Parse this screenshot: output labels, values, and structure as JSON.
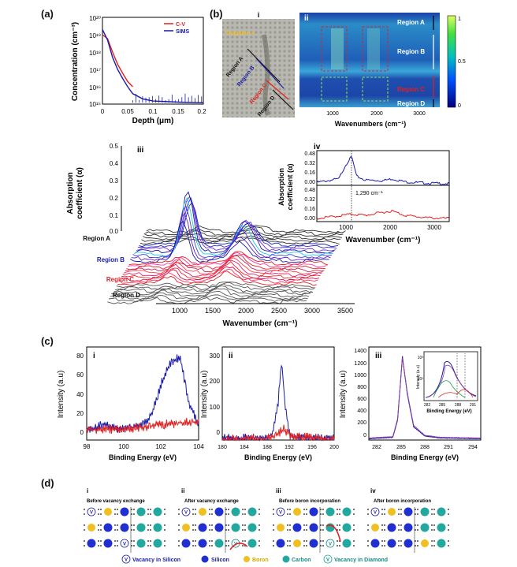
{
  "panel_labels": {
    "a": "(a)",
    "b": "(b)",
    "c": "(c)",
    "d": "(d)"
  },
  "panel_a": {
    "ylabel": "Concentration (cm⁻³)",
    "xlabel": "Depth (μm)",
    "legend": [
      "C-V",
      "SIMS"
    ],
    "ytick_labels": [
      "10²⁰",
      "10¹⁹",
      "10¹⁸",
      "10¹⁷",
      "10¹⁶",
      "10¹⁵"
    ],
    "xtick_labels": [
      "0",
      "0.05",
      "0.1",
      "0.15",
      "0.2"
    ]
  },
  "panel_b": {
    "sub_i": "i",
    "sub_ii": "ii",
    "map_regions": [
      "Region A",
      "Region B",
      "Region C",
      "Region D"
    ],
    "optical_regions": [
      "Region A",
      "Region B",
      "Region C",
      "Region D"
    ],
    "optical_tag": "Tungsten +",
    "xlabel": "Wavenumbers (cm⁻¹)",
    "xtick_labels": [
      "1000",
      "2000",
      "3000"
    ],
    "colorbar_ticks": [
      "1",
      "0.5",
      "0"
    ]
  },
  "panel_iii": {
    "sub": "iii",
    "ylabel_line1": "Absorption",
    "ylabel_line2": "coefficient (α)",
    "ytick_labels": [
      "0.5",
      "0.4",
      "0.3",
      "0.2",
      "0.1",
      "0.0"
    ],
    "xtick_labels": [
      "1000",
      "1500",
      "2000",
      "2500",
      "3000",
      "3500"
    ],
    "xlabel": "Wavenumber (cm⁻¹)",
    "regions": [
      "Region A",
      "Region B",
      "Region C",
      "Region D"
    ]
  },
  "panel_iv": {
    "sub": "iv",
    "ylabel_line1": "Absorption",
    "ylabel_line2": "coefficient (α)",
    "ytick_labels_top": [
      "0.48",
      "0.32",
      "0.16",
      "0.00"
    ],
    "ytick_labels_bottom": [
      "0.48",
      "0.32",
      "0.16",
      "0.00"
    ],
    "xtick_labels": [
      "1000",
      "2000",
      "3000"
    ],
    "annotation": "1,290 cm⁻¹",
    "xlabel": "Wavenumber (cm⁻¹)"
  },
  "panel_c": {
    "ylabel": "Intensity (a.u)",
    "xlabel": "Binding Energy (eV)",
    "plots": [
      {
        "sub": "i",
        "ytick_labels": [
          "80",
          "60",
          "40",
          "20",
          "0"
        ],
        "xtick_labels": [
          "98",
          "100",
          "102",
          "104"
        ]
      },
      {
        "sub": "ii",
        "ytick_labels": [
          "300",
          "200",
          "100",
          "0"
        ],
        "xtick_labels": [
          "180",
          "184",
          "188",
          "192",
          "196",
          "200"
        ]
      },
      {
        "sub": "iii",
        "ytick_labels": [
          "1400",
          "1200",
          "1000",
          "800",
          "600",
          "400",
          "200",
          "0"
        ],
        "xtick_labels": [
          "282",
          "285",
          "288",
          "291",
          "294"
        ]
      }
    ],
    "inset": {
      "ylabel": "Intensity (a.u)",
      "xlabel": "Binding Energy (eV)",
      "ytick_labels": [
        "10³",
        "10²"
      ],
      "xtick_labels": [
        "282",
        "285",
        "288",
        "291"
      ]
    }
  },
  "panel_d": {
    "steps": [
      {
        "num": "i",
        "title": "Before vacancy exchange"
      },
      {
        "num": "ii",
        "title": "After vacancy exchange"
      },
      {
        "num": "iii",
        "title": "Before boron incorporation"
      },
      {
        "num": "iv",
        "title": "After boron incorporation"
      }
    ],
    "legend": [
      "Vacancy in Silicon",
      "Silicon",
      "Boron",
      "Carbon",
      "Vacancy in Diamond"
    ],
    "vacancy_symbol": "V"
  },
  "colors": {
    "red": "#e02020",
    "blue": "#1a1aa8",
    "silicon": "#1f2fd0",
    "boron": "#f0c020",
    "carbon": "#23a8a0"
  },
  "chart_data": [
    {
      "type": "line",
      "title": "",
      "xlabel": "Depth (μm)",
      "ylabel": "Concentration (cm⁻³)",
      "xlim": [
        0,
        0.2
      ],
      "ylim": [
        1000000000000000.0,
        1e+20
      ],
      "yscale": "log",
      "series": [
        {
          "name": "C-V",
          "x": [
            0,
            0.01,
            0.02,
            0.03,
            0.04,
            0.05,
            0.06
          ],
          "values": [
            1e+19,
            6e+18,
            1e+18,
            2e+17,
            6e+16,
            2e+16,
            1e+16
          ]
        },
        {
          "name": "SIMS",
          "x": [
            0,
            0.01,
            0.02,
            0.03,
            0.04,
            0.05,
            0.06,
            0.08,
            0.1,
            0.15,
            0.2
          ],
          "values": [
            2e+19,
            5e+18,
            5e+17,
            1e+17,
            3e+16,
            1e+16,
            4000000000000000.0,
            2000000000000000.0,
            1500000000000000.0,
            1300000000000000.0,
            1200000000000000.0
          ]
        }
      ]
    },
    {
      "type": "line",
      "title": "",
      "xlabel": "Wavenumber (cm⁻¹)",
      "ylabel": "Absorption coefficient (α)",
      "xlim": [
        500,
        3500
      ],
      "ylim": [
        0,
        0.56
      ],
      "series": [
        {
          "name": "Region B",
          "x": [
            500,
            1000,
            1150,
            1290,
            1400,
            1600,
            2000,
            2200,
            2500,
            3000,
            3500
          ],
          "values": [
            0.02,
            0.08,
            0.3,
            0.44,
            0.12,
            0.06,
            0.05,
            0.08,
            0.03,
            0.01,
            0.0
          ]
        },
        {
          "name": "Region C",
          "x": [
            500,
            1000,
            1290,
            1600,
            2000,
            2200,
            2500,
            3000,
            3500
          ],
          "values": [
            0.0,
            0.04,
            0.07,
            0.05,
            0.1,
            0.12,
            0.05,
            0.01,
            0.0
          ]
        }
      ]
    },
    {
      "type": "line",
      "title": "",
      "xlabel": "Binding Energy (eV)",
      "ylabel": "Intensity (a.u)",
      "xlim": [
        98,
        104
      ],
      "ylim": [
        -10,
        80
      ],
      "series": [
        {
          "name": "blue",
          "x": [
            98,
            99,
            100,
            101,
            101.5,
            102,
            102.5,
            103,
            103.5,
            104
          ],
          "values": [
            0,
            5,
            0,
            5,
            15,
            45,
            65,
            70,
            25,
            5
          ]
        },
        {
          "name": "red",
          "x": [
            98,
            100,
            102,
            104
          ],
          "values": [
            0,
            0,
            5,
            8
          ]
        }
      ]
    },
    {
      "type": "line",
      "title": "",
      "xlabel": "Binding Energy (eV)",
      "ylabel": "Intensity (a.u)",
      "xlim": [
        180,
        200
      ],
      "ylim": [
        0,
        300
      ],
      "series": [
        {
          "name": "blue",
          "x": [
            180,
            188,
            189,
            190,
            190.6,
            191.2,
            192,
            193,
            200
          ],
          "values": [
            5,
            8,
            20,
            120,
            260,
            120,
            20,
            8,
            5
          ]
        },
        {
          "name": "red",
          "x": [
            180,
            188,
            190,
            191,
            192,
            200
          ],
          "values": [
            0,
            5,
            20,
            35,
            15,
            0
          ]
        }
      ]
    },
    {
      "type": "line",
      "title": "",
      "xlabel": "Binding Energy (eV)",
      "ylabel": "Intensity (a.u)",
      "xlim": [
        281,
        295
      ],
      "ylim": [
        0,
        1400
      ],
      "series": [
        {
          "name": "blue",
          "x": [
            281,
            284,
            284.6,
            285.2,
            285.8,
            286.6,
            288,
            290,
            295
          ],
          "values": [
            20,
            40,
            300,
            1260,
            700,
            200,
            60,
            30,
            20
          ]
        },
        {
          "name": "purple",
          "x": [
            281,
            284,
            284.6,
            285.2,
            285.8,
            286.6,
            288,
            290,
            295
          ],
          "values": [
            30,
            50,
            320,
            1240,
            720,
            220,
            70,
            40,
            30
          ]
        }
      ]
    }
  ]
}
